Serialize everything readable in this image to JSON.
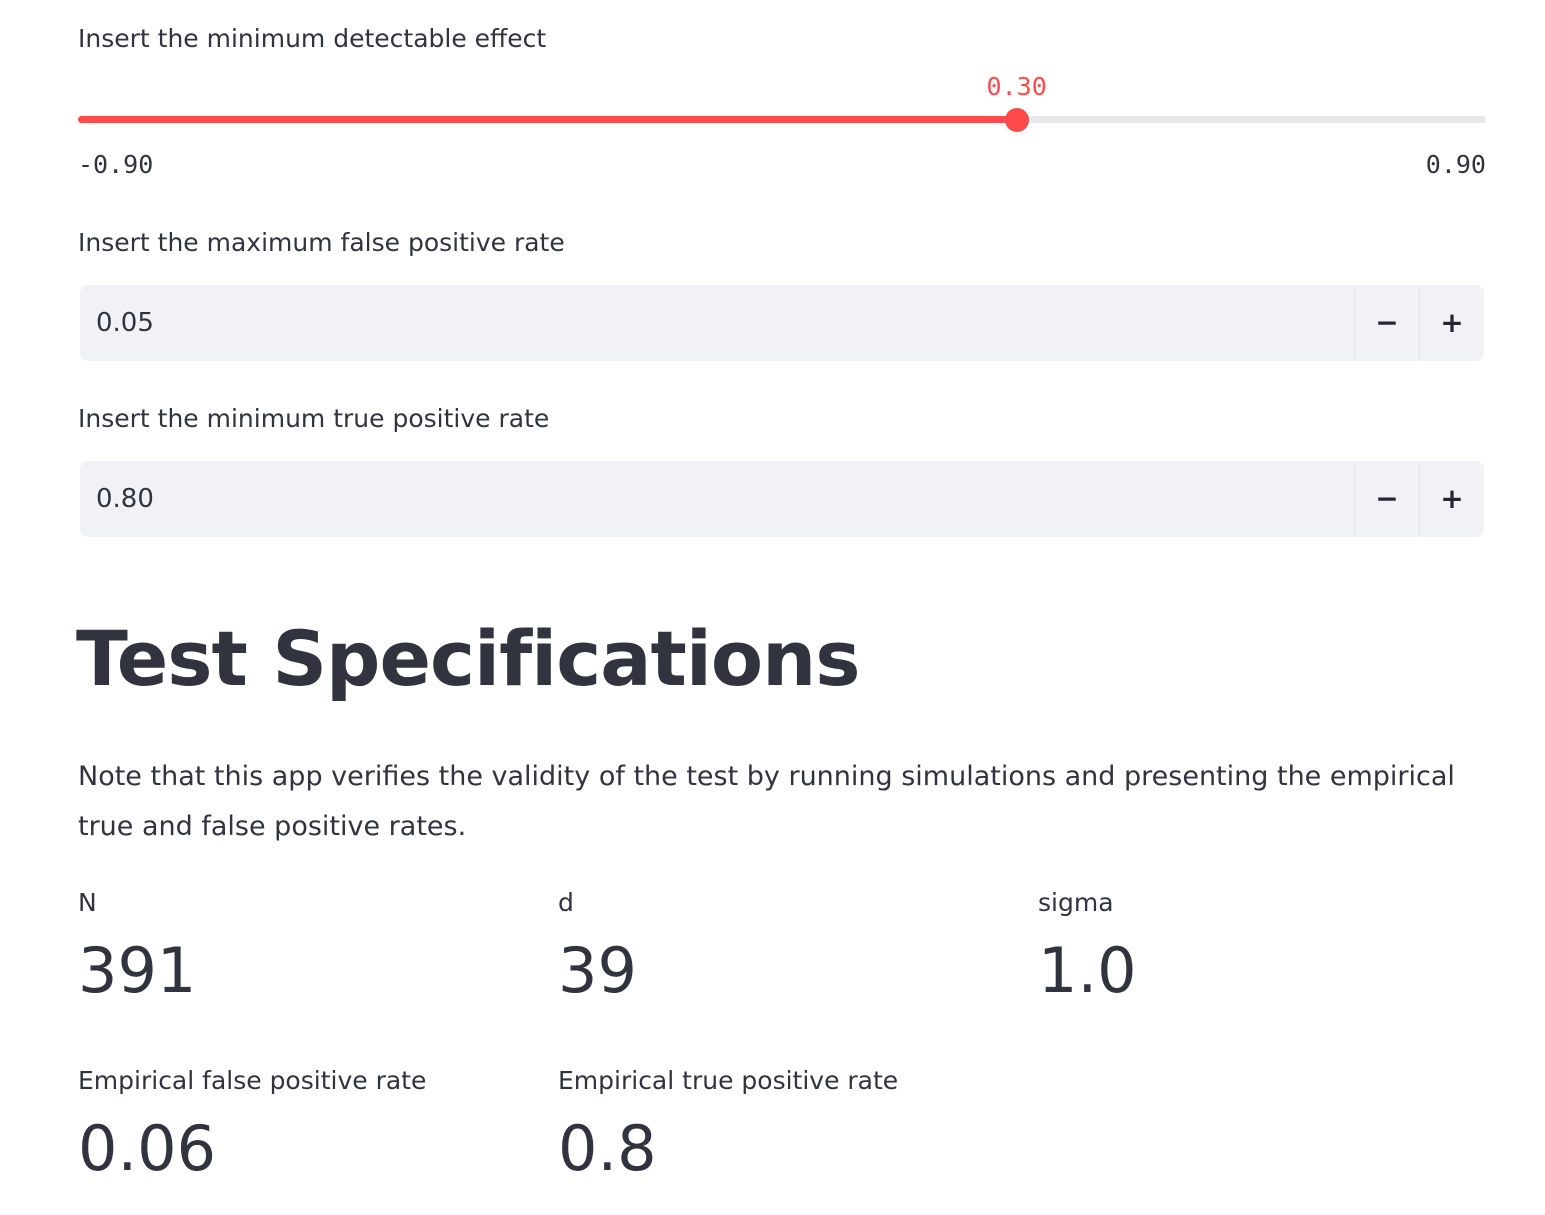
{
  "mde": {
    "label": "Insert the minimum detectable effect",
    "value": 0.3,
    "value_text": "0.30",
    "min": -0.9,
    "min_text": "-0.90",
    "max": 0.9,
    "max_text": "0.90"
  },
  "fpr": {
    "label": "Insert the maximum false positive rate",
    "value": "0.05",
    "decrement": "−",
    "increment": "+"
  },
  "tpr": {
    "label": "Insert the minimum true positive rate",
    "value": "0.80",
    "decrement": "−",
    "increment": "+"
  },
  "specs": {
    "title": "Test Specifications",
    "note": "Note that this app verifies the validity of the test by running simulations and presenting the empirical true and false positive rates."
  },
  "metrics": {
    "n": {
      "label": "N",
      "value": "391"
    },
    "d": {
      "label": "d",
      "value": "39"
    },
    "sigma": {
      "label": "sigma",
      "value": "1.0"
    },
    "empirical_fpr": {
      "label": "Empirical false positive rate",
      "value": "0.06"
    },
    "empirical_tpr": {
      "label": "Empirical true positive rate",
      "value": "0.8"
    }
  },
  "colors": {
    "accent": "#ff4b4b",
    "text": "#31333f",
    "input_bg": "#f0f2f6",
    "track": "#e6e8ee"
  }
}
